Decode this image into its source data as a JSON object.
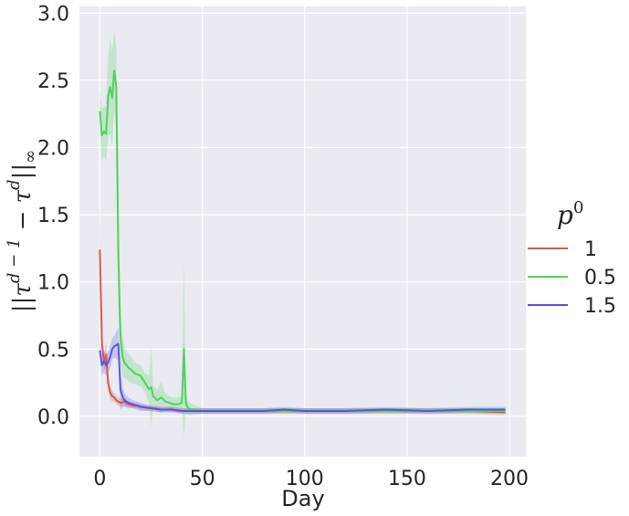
{
  "chart_data": {
    "type": "line",
    "xlabel": "Day",
    "ylabel": "||τ^(d−1) − τ^d||∞",
    "ylabel_parts": {
      "bars_left": "||",
      "tau1": "τ",
      "sup1": "d − 1",
      "minus": " − ",
      "tau2": "τ",
      "sup2": "d",
      "bars_right": "||",
      "sub": "∞"
    },
    "xlim": [
      -10,
      208
    ],
    "ylim": [
      -0.3,
      3.05
    ],
    "xticks": [
      0,
      50,
      100,
      150,
      200
    ],
    "yticks": [
      0.0,
      0.5,
      1.0,
      1.5,
      2.0,
      2.5,
      3.0
    ],
    "ytick_labels": [
      "0.0",
      "0.5",
      "1.0",
      "1.5",
      "2.0",
      "2.5",
      "3.0"
    ],
    "grid": true,
    "legend": {
      "title_base": "p",
      "title_sup": "0",
      "placement": "right"
    },
    "series": [
      {
        "name": "1",
        "color": "#d8584a",
        "x": [
          0,
          1,
          2,
          3,
          4,
          5,
          6,
          7,
          8,
          9,
          10,
          12,
          14,
          16,
          18,
          20,
          25,
          30,
          35,
          40,
          45,
          50,
          60,
          70,
          80,
          90,
          100,
          120,
          140,
          160,
          180,
          198
        ],
        "y": [
          1.24,
          0.55,
          0.4,
          0.46,
          0.25,
          0.18,
          0.15,
          0.14,
          0.12,
          0.11,
          0.1,
          0.11,
          0.09,
          0.08,
          0.08,
          0.07,
          0.06,
          0.05,
          0.05,
          0.04,
          0.04,
          0.04,
          0.04,
          0.04,
          0.04,
          0.04,
          0.04,
          0.04,
          0.04,
          0.04,
          0.04,
          0.03
        ],
        "band": [
          0.36,
          0.05,
          0.06,
          0.1,
          0.06,
          0.05,
          0.04,
          0.03,
          0.03,
          0.03,
          0.03,
          0.03,
          0.02,
          0.02,
          0.02,
          0.02,
          0.02,
          0.02,
          0.02,
          0.02,
          0.02,
          0.02,
          0.02,
          0.02,
          0.02,
          0.02,
          0.02,
          0.02,
          0.02,
          0.02,
          0.02,
          0.02
        ]
      },
      {
        "name": "0.5",
        "color": "#4fd35a",
        "x": [
          0,
          1,
          2,
          3,
          4,
          5,
          6,
          7,
          8,
          9,
          10,
          11,
          12,
          13,
          14,
          15,
          17,
          20,
          22,
          24,
          25,
          26,
          28,
          30,
          32,
          34,
          36,
          38,
          40,
          41,
          42,
          43,
          45,
          50,
          60,
          70,
          80,
          90,
          100,
          120,
          140,
          160,
          180,
          198
        ],
        "y": [
          2.27,
          2.09,
          2.12,
          2.1,
          2.38,
          2.45,
          2.37,
          2.57,
          2.45,
          1.2,
          0.6,
          0.45,
          0.4,
          0.38,
          0.36,
          0.35,
          0.32,
          0.3,
          0.25,
          0.2,
          0.22,
          0.15,
          0.12,
          0.14,
          0.11,
          0.1,
          0.09,
          0.09,
          0.1,
          0.5,
          0.1,
          0.06,
          0.05,
          0.04,
          0.04,
          0.04,
          0.04,
          0.04,
          0.04,
          0.04,
          0.04,
          0.04,
          0.04,
          0.04
        ],
        "band": [
          0.15,
          0.2,
          0.18,
          0.2,
          0.3,
          0.35,
          0.35,
          0.3,
          0.3,
          0.4,
          0.2,
          0.15,
          0.12,
          0.1,
          0.1,
          0.1,
          0.08,
          0.08,
          0.07,
          0.1,
          0.3,
          0.08,
          0.08,
          0.12,
          0.06,
          0.05,
          0.05,
          0.05,
          0.05,
          0.65,
          0.08,
          0.05,
          0.04,
          0.02,
          0.02,
          0.02,
          0.02,
          0.02,
          0.02,
          0.02,
          0.02,
          0.02,
          0.02,
          0.02
        ]
      },
      {
        "name": "1.5",
        "color": "#5757e0",
        "x": [
          0,
          1,
          2,
          3,
          4,
          5,
          6,
          7,
          8,
          9,
          10,
          11,
          12,
          14,
          16,
          18,
          20,
          25,
          30,
          35,
          40,
          45,
          50,
          60,
          70,
          80,
          90,
          100,
          120,
          140,
          160,
          180,
          198
        ],
        "y": [
          0.49,
          0.38,
          0.41,
          0.38,
          0.4,
          0.44,
          0.5,
          0.52,
          0.53,
          0.54,
          0.2,
          0.15,
          0.12,
          0.1,
          0.09,
          0.08,
          0.07,
          0.06,
          0.05,
          0.05,
          0.04,
          0.04,
          0.04,
          0.04,
          0.04,
          0.04,
          0.05,
          0.04,
          0.04,
          0.05,
          0.04,
          0.05,
          0.05
        ],
        "band": [
          0.06,
          0.08,
          0.08,
          0.08,
          0.08,
          0.08,
          0.08,
          0.08,
          0.1,
          0.12,
          0.15,
          0.08,
          0.05,
          0.04,
          0.03,
          0.03,
          0.03,
          0.02,
          0.02,
          0.02,
          0.02,
          0.02,
          0.02,
          0.02,
          0.02,
          0.02,
          0.02,
          0.02,
          0.02,
          0.02,
          0.02,
          0.02,
          0.02
        ]
      }
    ]
  }
}
